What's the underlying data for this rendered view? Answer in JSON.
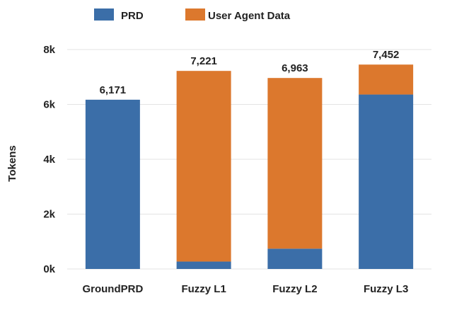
{
  "chart_data": {
    "type": "bar",
    "stacked": true,
    "categories": [
      "GroundPRD",
      "Fuzzy L1",
      "Fuzzy L2",
      "Fuzzy L3"
    ],
    "series": [
      {
        "name": "PRD",
        "color": "#3b6ea8",
        "values": [
          6171,
          270,
          740,
          6360
        ]
      },
      {
        "name": "User Agent Data",
        "color": "#dc782d",
        "values": [
          0,
          6951,
          6223,
          1092
        ]
      }
    ],
    "totals": [
      "6,171",
      "7,221",
      "6,963",
      "7,452"
    ],
    "ylabel": "Tokens",
    "ylim": [
      0,
      8000
    ],
    "yticks": [
      0,
      2000,
      4000,
      6000,
      8000
    ],
    "ytick_labels": [
      "0k",
      "2k",
      "4k",
      "6k",
      "8k"
    ],
    "grid": true,
    "legend_position": "top"
  }
}
